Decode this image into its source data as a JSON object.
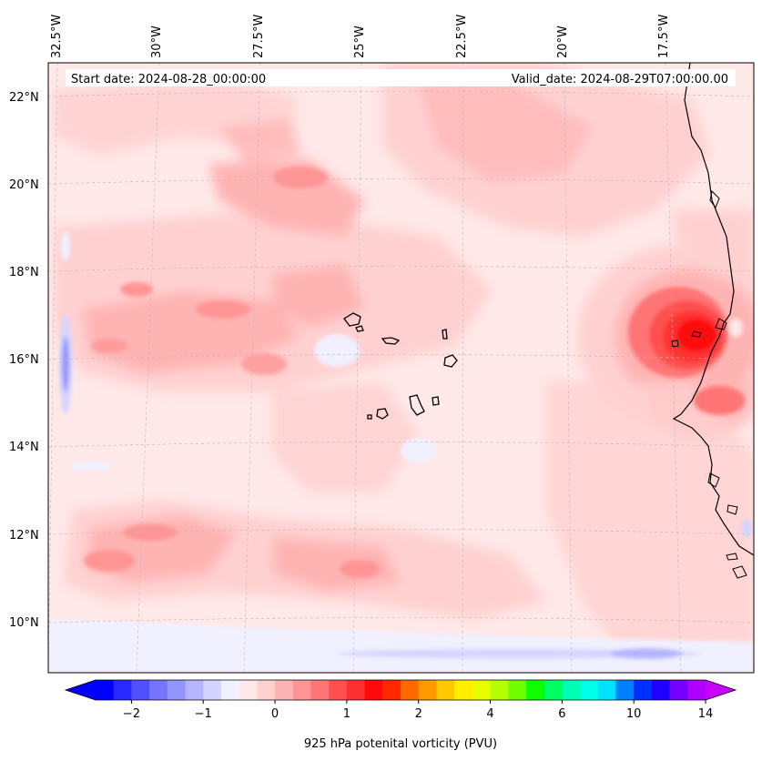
{
  "map": {
    "start_date": "Start date: 2024-08-28_00:00:00",
    "valid_date": "Valid_date: 2024-08-29T07:00:00.00",
    "lon_labels": [
      "32.5°W",
      "30°W",
      "27.5°W",
      "25°W",
      "22.5°W",
      "20°W",
      "17.5°W"
    ],
    "lat_labels": [
      "22°N",
      "20°N",
      "18°N",
      "16°N",
      "14°N",
      "12°N",
      "10°N"
    ],
    "field": "925 hPa potential vorticity"
  },
  "colorbar": {
    "label": "925 hPa potenital vorticity (PVU)",
    "ticks": [
      "−2",
      "−1",
      "0",
      "1",
      "2",
      "4",
      "6",
      "10",
      "14"
    ],
    "colors": [
      "#0000ff",
      "#2a2aff",
      "#5050ff",
      "#7474ff",
      "#9494ff",
      "#b4b4ff",
      "#d4d4ff",
      "#f0f0ff",
      "#ffe8e8",
      "#ffd0d0",
      "#ffb4b4",
      "#ff9494",
      "#ff7474",
      "#ff5050",
      "#ff3030",
      "#ff0a0a",
      "#ff2800",
      "#ff6a00",
      "#ff9a00",
      "#ffc800",
      "#ffee00",
      "#e8ff00",
      "#b4ff00",
      "#70ff00",
      "#10ff00",
      "#00ff60",
      "#00ffb4",
      "#00ffe8",
      "#00e0ff",
      "#0080ff",
      "#0030ff",
      "#2000ff",
      "#7800ff",
      "#b000ff"
    ],
    "under_color": "#0000ff",
    "over_color": "#c800ff"
  }
}
